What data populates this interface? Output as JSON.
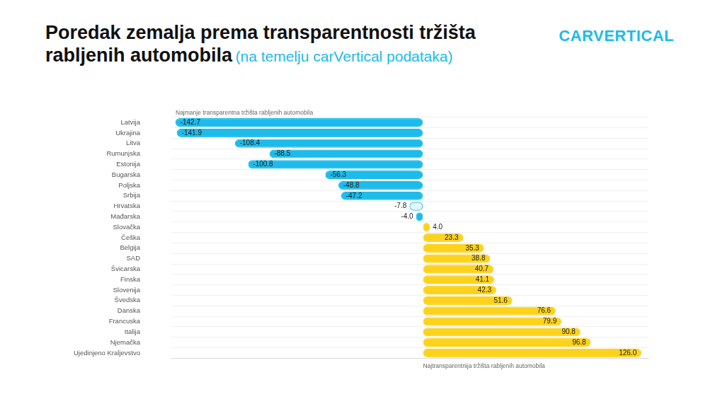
{
  "chart_data": {
    "type": "bar",
    "title": "Poredak zemalja prema transparentnosti tržišta rabljenih automobila",
    "subtitle": "(na temelju carVertical podataka)",
    "brand": "CARVERTICAL",
    "annotations": [
      "Najmanje transparentna tržišta rabljenih automobila",
      "Najtransparentnija tržišta rabljenih automobila"
    ],
    "orientation": "horizontal",
    "categories": [
      "Latvija",
      "Ukrajina",
      "Litva",
      "Rumunjska",
      "Estonija",
      "Bugarska",
      "Poljska",
      "Srbija",
      "Hrvatska",
      "Mađarska",
      "Slovačka",
      "Češka",
      "Belgija",
      "SAD",
      "Švicarska",
      "Finska",
      "Slovenija",
      "Švedska",
      "Danska",
      "Francuska",
      "Italija",
      "Njemačka",
      "Ujedinjeno Kraljevstvo"
    ],
    "values": [
      -142.7,
      -141.9,
      -108.4,
      -88.5,
      -100.8,
      -56.3,
      -48.8,
      -47.2,
      -7.8,
      -4.0,
      4.0,
      23.3,
      35.3,
      38.8,
      40.7,
      41.1,
      42.3,
      51.6,
      76.6,
      79.9,
      90.8,
      96.8,
      126.0
    ],
    "value_labels": [
      "-142.7",
      "-141.9",
      "-108.4",
      "-88.5",
      "-100.8",
      "-56.3",
      "-48.8",
      "-47.2",
      "-7.8",
      "-4.0",
      "4.0",
      "23.3",
      "35.3",
      "38.8",
      "40.7",
      "41.1",
      "42.3",
      "51.6",
      "76.6",
      "79.9",
      "90.8",
      "96.8",
      "126.0"
    ],
    "colors": [
      "#1cbbea",
      "#1cbbea",
      "#1cbbea",
      "#1cbbea",
      "#1cbbea",
      "#1cbbea",
      "#1cbbea",
      "#1cbbea",
      "#e6f7fc",
      "#1cbbea",
      "#fcd21c",
      "#fcd21c",
      "#fcd21c",
      "#fcd21c",
      "#fcd21c",
      "#fcd21c",
      "#fcd21c",
      "#fcd21c",
      "#fcd21c",
      "#fcd21c",
      "#fcd21c",
      "#fcd21c",
      "#fcd21c"
    ],
    "xlim": [
      -145,
      130
    ],
    "grid": true,
    "data_labels": true,
    "tick_labels": "y"
  }
}
